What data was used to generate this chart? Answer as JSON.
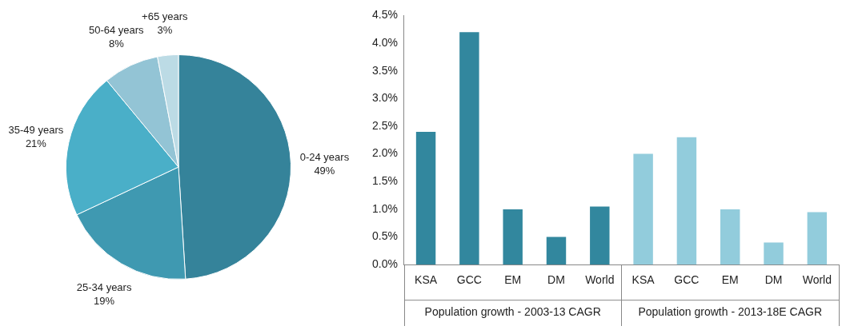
{
  "chart_data": [
    {
      "type": "pie",
      "categories": [
        "0-24 years",
        "25-34 years",
        "35-49 years",
        "50-64 years",
        "+65 years"
      ],
      "values": [
        49,
        19,
        21,
        8,
        3
      ],
      "colors": [
        "#35839a",
        "#3f99b1",
        "#4aafc8",
        "#93c4d5",
        "#bcdbe5"
      ],
      "value_labels": [
        "49%",
        "19%",
        "21%",
        "8%",
        "3%"
      ],
      "legend": false
    },
    {
      "type": "bar",
      "categories": [
        "KSA",
        "GCC",
        "EM",
        "DM",
        "World",
        "KSA",
        "GCC",
        "EM",
        "DM",
        "World"
      ],
      "values": [
        2.4,
        4.2,
        1.0,
        0.5,
        1.05,
        2.0,
        2.3,
        1.0,
        0.4,
        0.95
      ],
      "colors": [
        "#32879e",
        "#32879e",
        "#32879e",
        "#32879e",
        "#32879e",
        "#92ccdc",
        "#92ccdc",
        "#92ccdc",
        "#92ccdc",
        "#92ccdc"
      ],
      "ylim": [
        0,
        4.5
      ],
      "yticks": [
        {
          "value": 0,
          "label": "0.0%"
        },
        {
          "value": 0.5,
          "label": "0.5%"
        },
        {
          "value": 1,
          "label": "1.0%"
        },
        {
          "value": 1.5,
          "label": "1.5%"
        },
        {
          "value": 2,
          "label": "2.0%"
        },
        {
          "value": 2.5,
          "label": "2.5%"
        },
        {
          "value": 3,
          "label": "3.0%"
        },
        {
          "value": 3.5,
          "label": "3.5%"
        },
        {
          "value": 4,
          "label": "4.0%"
        },
        {
          "value": 4.5,
          "label": "4.5%"
        }
      ],
      "annotations": [
        "Population growth - 2003-13 CAGR",
        "Population growth - 2013-18E CAGR"
      ],
      "grid": false,
      "legend": false
    }
  ]
}
